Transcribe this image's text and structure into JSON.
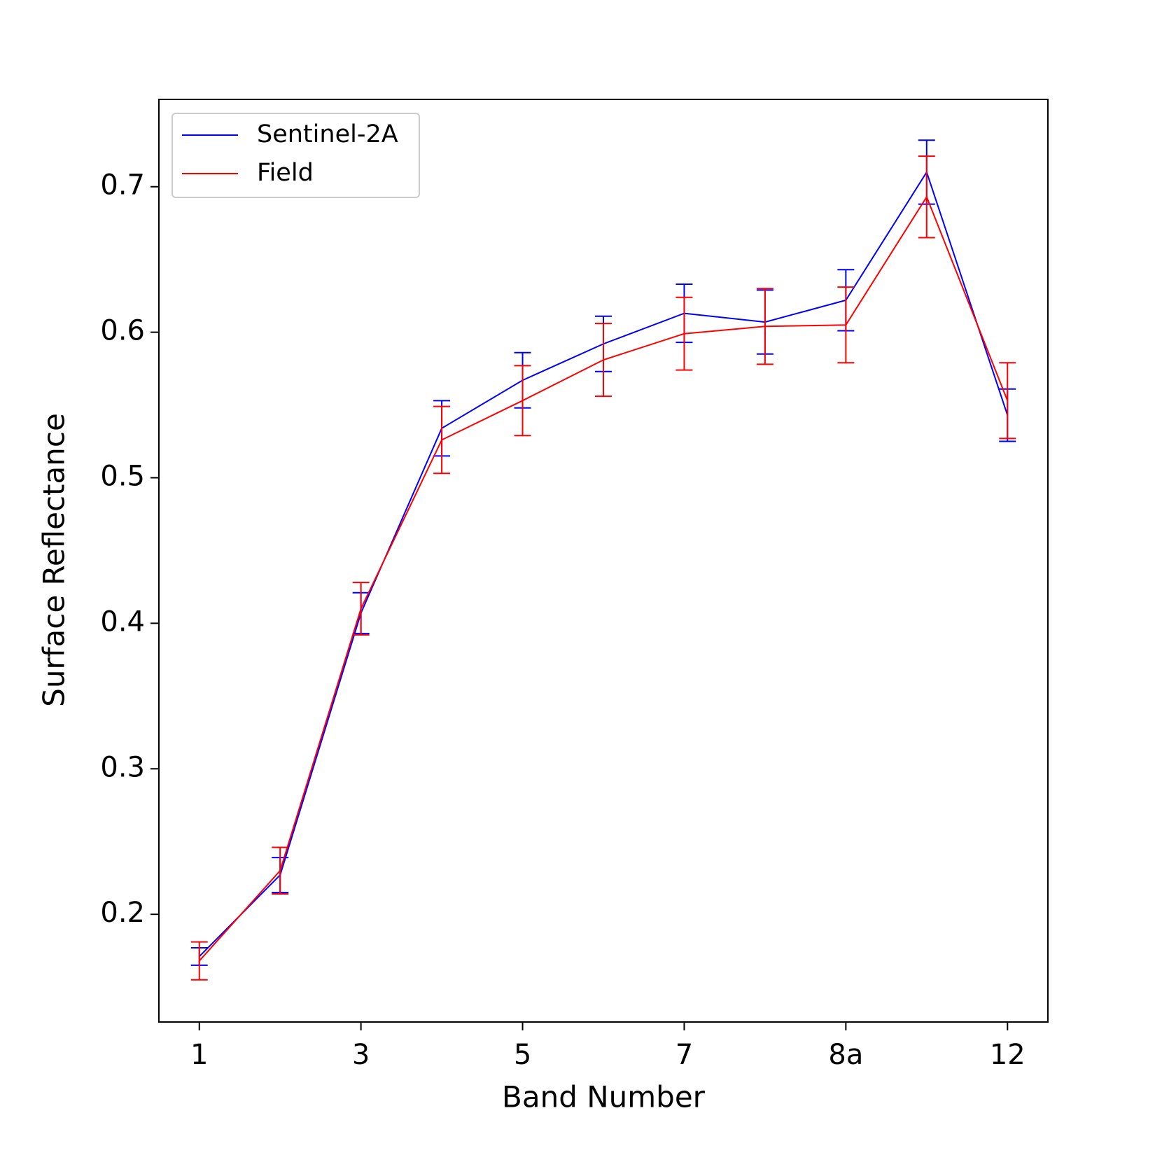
{
  "chart_data": {
    "type": "line",
    "xlabel": "Band Number",
    "ylabel": "Surface Reflectance",
    "categories": [
      "1",
      null,
      "3",
      null,
      "5",
      null,
      "7",
      null,
      "8a",
      null,
      "12"
    ],
    "series": [
      {
        "name": "Sentinel-2A",
        "color": "#0000ff",
        "values": [
          0.171,
          0.227,
          0.407,
          0.534,
          0.567,
          0.592,
          0.613,
          0.607,
          0.622,
          0.71,
          0.543
        ],
        "errors": [
          0.006,
          0.012,
          0.014,
          0.019,
          0.019,
          0.019,
          0.02,
          0.022,
          0.021,
          0.022,
          0.018
        ]
      },
      {
        "name": "Field",
        "color": "#ff0000",
        "values": [
          0.168,
          0.23,
          0.41,
          0.526,
          0.553,
          0.581,
          0.599,
          0.604,
          0.605,
          0.693,
          0.553
        ],
        "errors": [
          0.013,
          0.016,
          0.018,
          0.023,
          0.024,
          0.025,
          0.025,
          0.026,
          0.026,
          0.028,
          0.026
        ]
      }
    ],
    "ylim": [
      0.126,
      0.76
    ],
    "yticks": [
      0.2,
      0.3,
      0.4,
      0.5,
      0.6,
      0.7
    ],
    "legend": "upper left"
  }
}
